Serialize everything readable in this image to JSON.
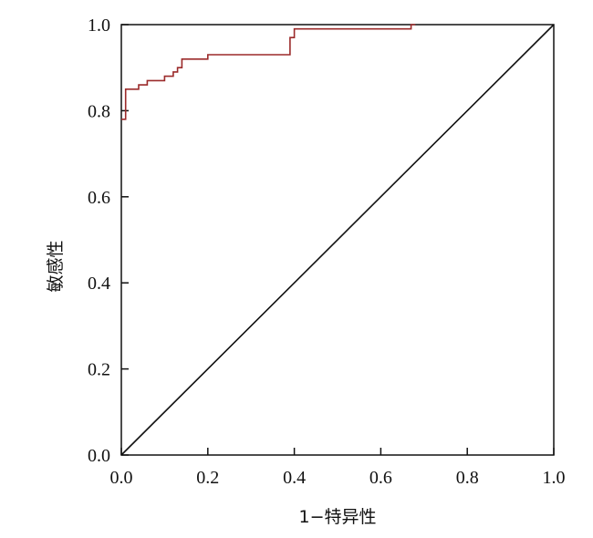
{
  "chart_data": {
    "type": "line",
    "title": "",
    "xlabel": "1−特异性",
    "ylabel": "敏感性",
    "xlim": [
      0,
      1
    ],
    "ylim": [
      0,
      1
    ],
    "x_ticks": [
      "0.0",
      "0.2",
      "0.4",
      "0.6",
      "0.8",
      "1.0"
    ],
    "y_ticks": [
      "0.0",
      "0.2",
      "0.4",
      "0.6",
      "0.8",
      "1.0"
    ],
    "grid": false,
    "legend": "none",
    "series": [
      {
        "color": "#9b2a2a",
        "step": true,
        "points": [
          [
            0.0,
            0.78
          ],
          [
            0.01,
            0.78
          ],
          [
            0.01,
            0.85
          ],
          [
            0.04,
            0.85
          ],
          [
            0.04,
            0.86
          ],
          [
            0.06,
            0.86
          ],
          [
            0.06,
            0.87
          ],
          [
            0.1,
            0.87
          ],
          [
            0.1,
            0.88
          ],
          [
            0.12,
            0.88
          ],
          [
            0.12,
            0.89
          ],
          [
            0.13,
            0.89
          ],
          [
            0.13,
            0.9
          ],
          [
            0.14,
            0.9
          ],
          [
            0.14,
            0.92
          ],
          [
            0.2,
            0.92
          ],
          [
            0.2,
            0.93
          ],
          [
            0.39,
            0.93
          ],
          [
            0.39,
            0.97
          ],
          [
            0.4,
            0.97
          ],
          [
            0.4,
            0.99
          ],
          [
            0.67,
            0.99
          ],
          [
            0.67,
            1.0
          ],
          [
            0.68,
            1.0
          ]
        ]
      },
      {
        "color": "#111111",
        "step": false,
        "points": [
          [
            0,
            0
          ],
          [
            1,
            1
          ]
        ]
      }
    ]
  }
}
